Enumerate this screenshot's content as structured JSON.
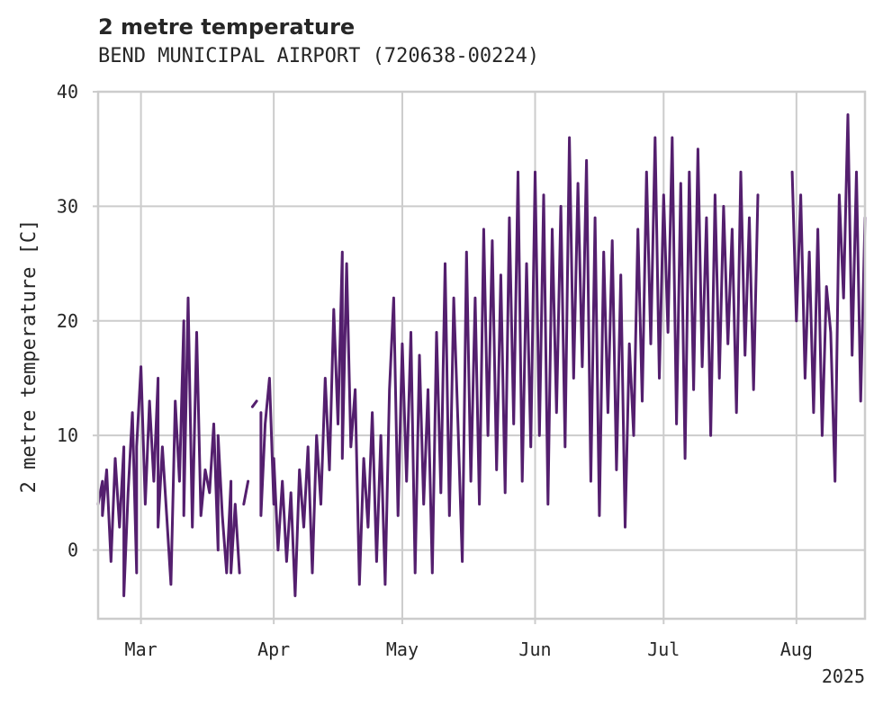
{
  "chart_data": {
    "type": "line",
    "title": "2 metre temperature",
    "subtitle": "BEND MUNICIPAL AIRPORT (720638-00224)",
    "ylabel": "2 metre temperature [C]",
    "xlabel": "",
    "year_label": "2025",
    "x_range": [
      "2025-02-19",
      "2025-08-17"
    ],
    "ylim": [
      -6,
      40
    ],
    "yticks": [
      0,
      10,
      20,
      30,
      40
    ],
    "xticks": [
      {
        "date": "2025-03-01",
        "label": "Mar"
      },
      {
        "date": "2025-04-01",
        "label": "Apr"
      },
      {
        "date": "2025-05-01",
        "label": "May"
      },
      {
        "date": "2025-06-01",
        "label": "Jun"
      },
      {
        "date": "2025-07-01",
        "label": "Jul"
      },
      {
        "date": "2025-08-01",
        "label": "Aug"
      }
    ],
    "grid": true,
    "series": [
      {
        "color": "#541f6e",
        "segments": [
          [
            [
              "2025-02-19",
              4
            ],
            [
              "2025-02-20",
              6
            ],
            [
              "2025-02-20",
              3
            ],
            [
              "2025-02-21",
              7
            ],
            [
              "2025-02-22",
              -1
            ],
            [
              "2025-02-23",
              8
            ],
            [
              "2025-02-24",
              2
            ],
            [
              "2025-02-25",
              9
            ],
            [
              "2025-02-25",
              -4
            ],
            [
              "2025-02-26",
              5
            ],
            [
              "2025-02-27",
              12
            ],
            [
              "2025-02-28",
              -2
            ],
            [
              "2025-02-28",
              9
            ],
            [
              "2025-03-01",
              16
            ],
            [
              "2025-03-02",
              4
            ],
            [
              "2025-03-03",
              13
            ],
            [
              "2025-03-04",
              6
            ],
            [
              "2025-03-05",
              15
            ],
            [
              "2025-03-05",
              2
            ],
            [
              "2025-03-06",
              9
            ],
            [
              "2025-03-07",
              3
            ],
            [
              "2025-03-08",
              -3
            ],
            [
              "2025-03-09",
              13
            ],
            [
              "2025-03-10",
              6
            ],
            [
              "2025-03-11",
              20
            ],
            [
              "2025-03-11",
              3
            ],
            [
              "2025-03-12",
              22
            ],
            [
              "2025-03-13",
              2
            ],
            [
              "2025-03-14",
              19
            ],
            [
              "2025-03-15",
              3
            ],
            [
              "2025-03-16",
              7
            ],
            [
              "2025-03-17",
              5
            ],
            [
              "2025-03-18",
              11
            ],
            [
              "2025-03-19",
              0
            ],
            [
              "2025-03-19",
              10
            ],
            [
              "2025-03-20",
              3
            ],
            [
              "2025-03-21",
              -2
            ],
            [
              "2025-03-22",
              6
            ],
            [
              "2025-03-22",
              -2
            ],
            [
              "2025-03-23",
              4
            ],
            [
              "2025-03-24",
              -2
            ]
          ],
          [
            [
              "2025-03-25",
              4
            ],
            [
              "2025-03-26",
              6
            ]
          ],
          [
            [
              "2025-03-27",
              12.5
            ],
            [
              "2025-03-28",
              13
            ]
          ],
          [
            [
              "2025-03-29",
              12
            ],
            [
              "2025-03-29",
              3
            ],
            [
              "2025-03-30",
              11
            ],
            [
              "2025-03-31",
              15
            ],
            [
              "2025-04-01",
              4
            ],
            [
              "2025-04-01",
              8
            ],
            [
              "2025-04-02",
              0
            ],
            [
              "2025-04-03",
              6
            ],
            [
              "2025-04-04",
              -1
            ],
            [
              "2025-04-05",
              5
            ],
            [
              "2025-04-06",
              -4
            ],
            [
              "2025-04-07",
              7
            ],
            [
              "2025-04-08",
              2
            ],
            [
              "2025-04-09",
              9
            ],
            [
              "2025-04-10",
              -2
            ],
            [
              "2025-04-11",
              10
            ],
            [
              "2025-04-12",
              4
            ],
            [
              "2025-04-13",
              15
            ],
            [
              "2025-04-14",
              7
            ],
            [
              "2025-04-15",
              21
            ],
            [
              "2025-04-16",
              11
            ],
            [
              "2025-04-17",
              26
            ],
            [
              "2025-04-17",
              8
            ],
            [
              "2025-04-18",
              25
            ],
            [
              "2025-04-19",
              9
            ],
            [
              "2025-04-20",
              14
            ],
            [
              "2025-04-21",
              -3
            ],
            [
              "2025-04-22",
              8
            ],
            [
              "2025-04-23",
              2
            ],
            [
              "2025-04-24",
              12
            ],
            [
              "2025-04-25",
              -1
            ],
            [
              "2025-04-26",
              10
            ],
            [
              "2025-04-27",
              -3
            ],
            [
              "2025-04-28",
              14
            ],
            [
              "2025-04-29",
              22
            ],
            [
              "2025-04-30",
              3
            ],
            [
              "2025-05-01",
              18
            ],
            [
              "2025-05-02",
              6
            ],
            [
              "2025-05-03",
              19
            ],
            [
              "2025-05-04",
              -2
            ],
            [
              "2025-05-05",
              17
            ],
            [
              "2025-05-06",
              4
            ],
            [
              "2025-05-07",
              14
            ],
            [
              "2025-05-08",
              -2
            ],
            [
              "2025-05-09",
              19
            ],
            [
              "2025-05-10",
              5
            ],
            [
              "2025-05-11",
              25
            ],
            [
              "2025-05-12",
              3
            ],
            [
              "2025-05-13",
              22
            ],
            [
              "2025-05-14",
              11
            ],
            [
              "2025-05-15",
              -1
            ],
            [
              "2025-05-16",
              26
            ],
            [
              "2025-05-17",
              6
            ],
            [
              "2025-05-18",
              22
            ],
            [
              "2025-05-19",
              4
            ],
            [
              "2025-05-20",
              28
            ],
            [
              "2025-05-21",
              10
            ],
            [
              "2025-05-22",
              27
            ],
            [
              "2025-05-23",
              7
            ],
            [
              "2025-05-24",
              24
            ],
            [
              "2025-05-25",
              5
            ],
            [
              "2025-05-26",
              29
            ],
            [
              "2025-05-27",
              11
            ],
            [
              "2025-05-28",
              33
            ],
            [
              "2025-05-29",
              6
            ],
            [
              "2025-05-30",
              25
            ],
            [
              "2025-05-31",
              9
            ],
            [
              "2025-06-01",
              33
            ],
            [
              "2025-06-02",
              10
            ],
            [
              "2025-06-03",
              31
            ],
            [
              "2025-06-04",
              4
            ],
            [
              "2025-06-05",
              28
            ],
            [
              "2025-06-06",
              12
            ],
            [
              "2025-06-07",
              30
            ],
            [
              "2025-06-08",
              9
            ],
            [
              "2025-06-09",
              36
            ],
            [
              "2025-06-10",
              15
            ],
            [
              "2025-06-11",
              32
            ],
            [
              "2025-06-12",
              16
            ],
            [
              "2025-06-13",
              34
            ],
            [
              "2025-06-14",
              6
            ],
            [
              "2025-06-15",
              29
            ],
            [
              "2025-06-16",
              3
            ],
            [
              "2025-06-17",
              26
            ],
            [
              "2025-06-18",
              12
            ],
            [
              "2025-06-19",
              27
            ],
            [
              "2025-06-20",
              7
            ],
            [
              "2025-06-21",
              24
            ],
            [
              "2025-06-22",
              2
            ],
            [
              "2025-06-23",
              18
            ],
            [
              "2025-06-24",
              10
            ],
            [
              "2025-06-25",
              28
            ],
            [
              "2025-06-26",
              13
            ],
            [
              "2025-06-27",
              33
            ],
            [
              "2025-06-28",
              18
            ],
            [
              "2025-06-29",
              36
            ],
            [
              "2025-06-30",
              15
            ],
            [
              "2025-07-01",
              31
            ],
            [
              "2025-07-02",
              19
            ],
            [
              "2025-07-03",
              36
            ],
            [
              "2025-07-04",
              11
            ],
            [
              "2025-07-05",
              32
            ],
            [
              "2025-07-06",
              8
            ],
            [
              "2025-07-07",
              33
            ],
            [
              "2025-07-08",
              14
            ],
            [
              "2025-07-09",
              35
            ],
            [
              "2025-07-10",
              16
            ],
            [
              "2025-07-11",
              29
            ],
            [
              "2025-07-12",
              10
            ],
            [
              "2025-07-13",
              31
            ],
            [
              "2025-07-14",
              15
            ],
            [
              "2025-07-15",
              30
            ],
            [
              "2025-07-16",
              18
            ],
            [
              "2025-07-17",
              28
            ],
            [
              "2025-07-18",
              12
            ],
            [
              "2025-07-19",
              33
            ],
            [
              "2025-07-20",
              17
            ],
            [
              "2025-07-21",
              29
            ],
            [
              "2025-07-22",
              14
            ],
            [
              "2025-07-23",
              31
            ]
          ],
          [
            [
              "2025-07-31",
              33
            ],
            [
              "2025-08-01",
              20
            ],
            [
              "2025-08-02",
              31
            ],
            [
              "2025-08-03",
              15
            ],
            [
              "2025-08-04",
              26
            ],
            [
              "2025-08-05",
              12
            ],
            [
              "2025-08-06",
              28
            ],
            [
              "2025-08-07",
              10
            ],
            [
              "2025-08-08",
              23
            ],
            [
              "2025-08-09",
              19
            ],
            [
              "2025-08-10",
              6
            ],
            [
              "2025-08-11",
              31
            ],
            [
              "2025-08-12",
              22
            ],
            [
              "2025-08-13",
              38
            ],
            [
              "2025-08-14",
              17
            ],
            [
              "2025-08-15",
              33
            ],
            [
              "2025-08-16",
              13
            ],
            [
              "2025-08-17",
              29
            ]
          ]
        ]
      }
    ]
  }
}
